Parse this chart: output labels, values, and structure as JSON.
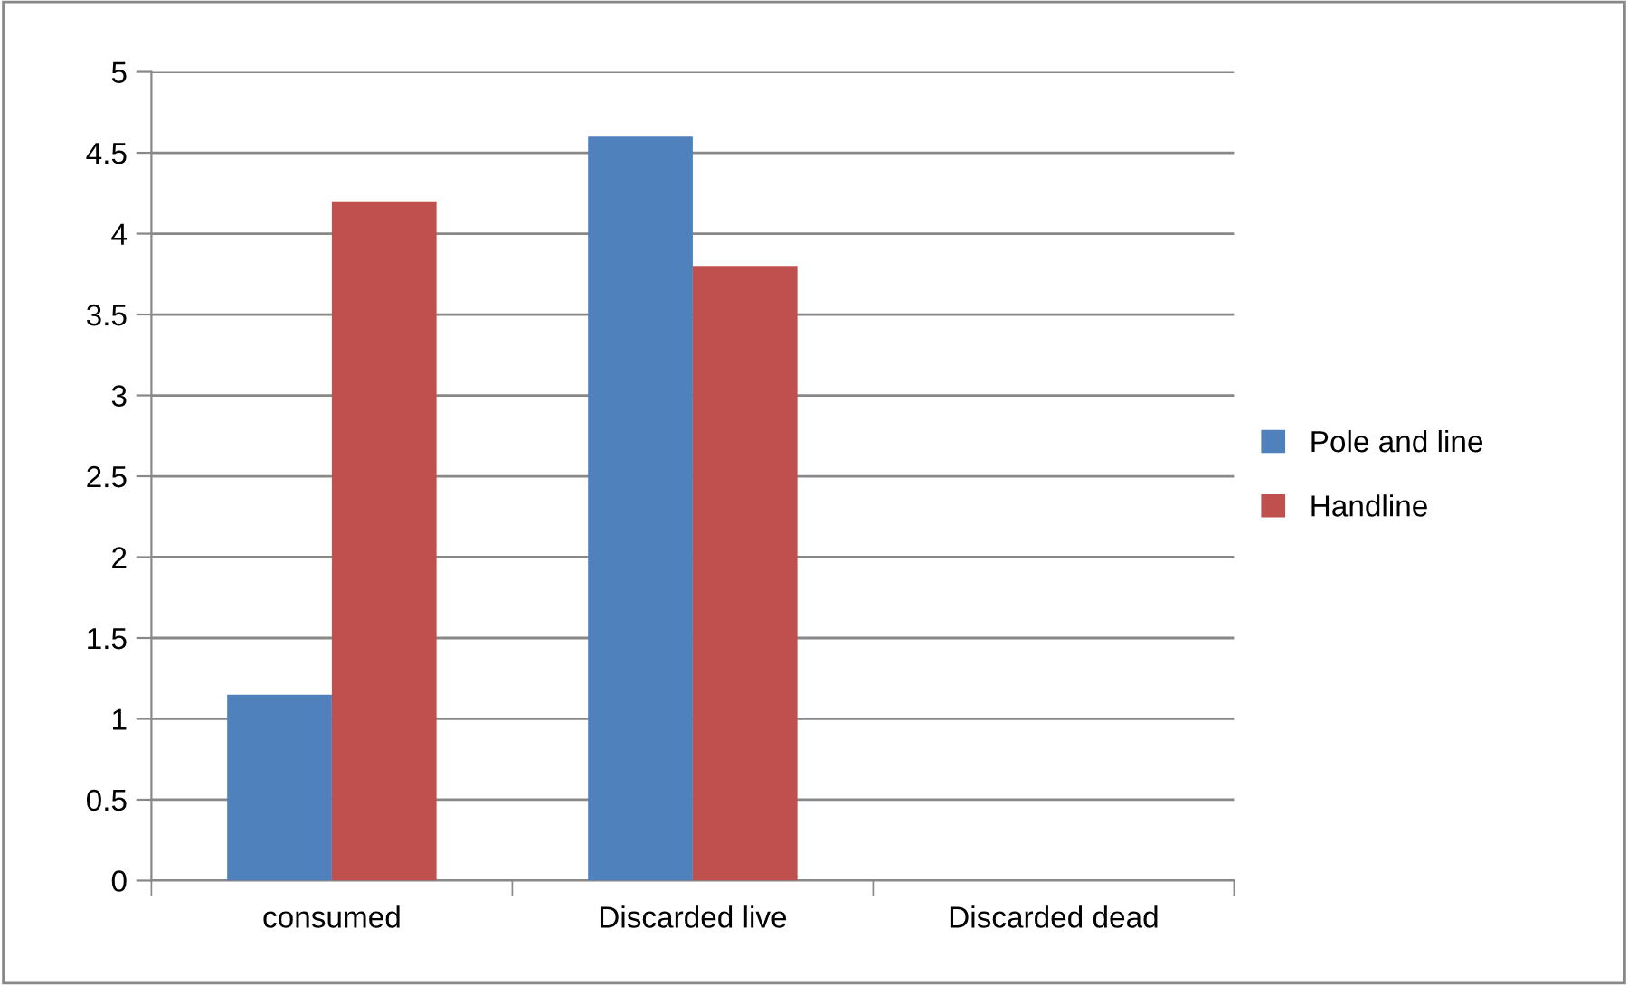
{
  "chart_data": {
    "type": "bar",
    "categories": [
      "consumed",
      "Discarded live",
      "Discarded dead"
    ],
    "series": [
      {
        "name": "Pole and line",
        "color": "#4f81bd",
        "values": [
          1.15,
          4.6,
          0
        ]
      },
      {
        "name": "Handline",
        "color": "#c0504d",
        "values": [
          4.2,
          3.8,
          0
        ]
      }
    ],
    "ylim": [
      0,
      5
    ],
    "yticks": [
      0,
      0.5,
      1,
      1.5,
      2,
      2.5,
      3,
      3.5,
      4,
      4.5,
      5
    ],
    "grid": "y",
    "legend": "right"
  }
}
